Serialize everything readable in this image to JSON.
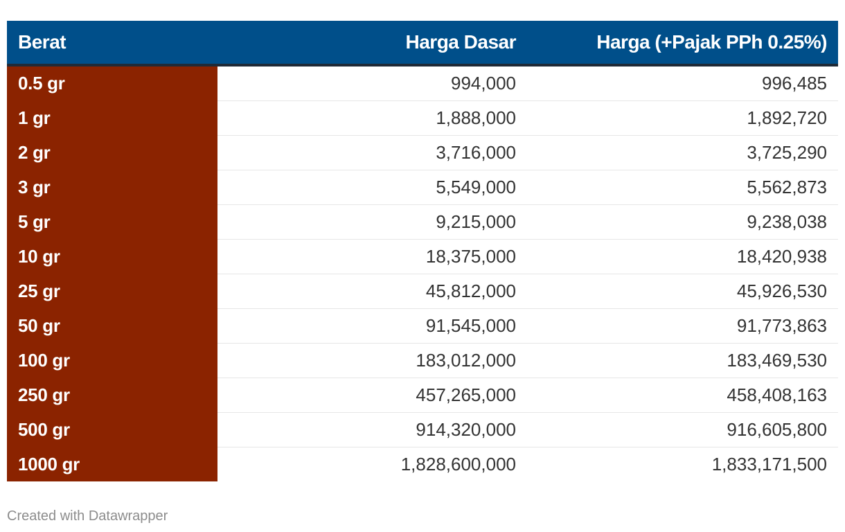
{
  "chart_data": {
    "type": "table",
    "columns": [
      "Berat",
      "Harga Dasar",
      "Harga (+Pajak PPh 0.25%)"
    ],
    "rows": [
      [
        "0.5 gr",
        "994,000",
        "996,485"
      ],
      [
        "1 gr",
        "1,888,000",
        "1,892,720"
      ],
      [
        "2 gr",
        "3,716,000",
        "3,725,290"
      ],
      [
        "3 gr",
        "5,549,000",
        "5,562,873"
      ],
      [
        "5 gr",
        "9,215,000",
        "9,238,038"
      ],
      [
        "10 gr",
        "18,375,000",
        "18,420,938"
      ],
      [
        "25 gr",
        "45,812,000",
        "45,926,530"
      ],
      [
        "50 gr",
        "91,545,000",
        "91,773,863"
      ],
      [
        "100 gr",
        "183,012,000",
        "183,469,530"
      ],
      [
        "250 gr",
        "457,265,000",
        "458,408,163"
      ],
      [
        "500 gr",
        "914,320,000",
        "916,605,800"
      ],
      [
        "1000 gr",
        "1,828,600,000",
        "1,833,171,500"
      ]
    ],
    "colors": {
      "header_bg": "#004f8a",
      "first_column_bg": "#8b2300"
    }
  },
  "footer": {
    "credit": "Created with Datawrapper"
  }
}
